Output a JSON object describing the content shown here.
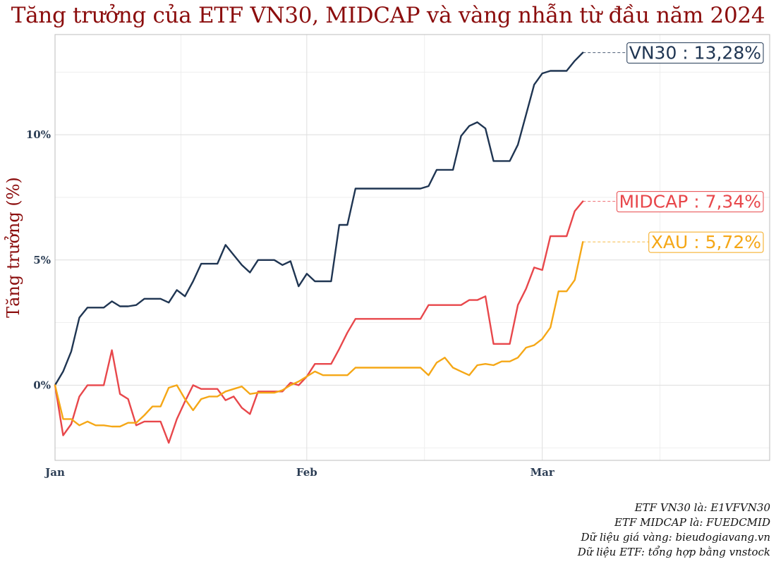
{
  "page_title": "Tăng trưởng của ETF VN30, MIDCAP và vàng nhẫn từ đầu năm 2024",
  "caption_lines": [
    "ETF VN30 là: E1VFVN30",
    "ETF MIDCAP là: FUEDCMID",
    "Dữ liệu giá vàng: bieudogiavang.vn",
    "Dữ liệu ETF: tổng hợp bằng vnstock"
  ],
  "chart_data": {
    "type": "line",
    "title": "Tăng trưởng của ETF VN30, MIDCAP và vàng nhẫn từ đầu năm 2024",
    "xlabel": "",
    "ylabel": "Tăng trưởng (%)",
    "x_unit": "day_of_year_2024",
    "xlim": [
      0,
      88
    ],
    "ylim": [
      -3,
      14
    ],
    "x_ticks": [
      {
        "value": 0,
        "label": "Jan"
      },
      {
        "value": 31,
        "label": "Feb"
      },
      {
        "value": 60,
        "label": "Mar"
      }
    ],
    "y_ticks": [
      {
        "value": 0,
        "label": "0%"
      },
      {
        "value": 5,
        "label": "5%"
      },
      {
        "value": 10,
        "label": "10%"
      }
    ],
    "grid": true,
    "series": [
      {
        "name": "VN30",
        "end_label": "VN30 : 13,28%",
        "color": "#1f3552",
        "x": [
          0,
          1,
          2,
          3,
          4,
          5,
          6,
          7,
          8,
          9,
          10,
          11,
          12,
          13,
          14,
          15,
          16,
          17,
          18,
          19,
          20,
          21,
          22,
          23,
          24,
          25,
          26,
          27,
          28,
          29,
          30,
          31,
          32,
          33,
          34,
          35,
          36,
          37,
          38,
          39,
          40,
          41,
          42,
          43,
          44,
          45,
          46,
          47,
          48,
          49,
          50,
          51,
          52,
          53,
          54,
          55,
          56,
          57,
          58,
          59,
          60,
          61,
          62,
          63,
          64
        ],
        "values": [
          0,
          0.55,
          1.35,
          2.7,
          3.1,
          3.1,
          3.1,
          3.35,
          3.15,
          3.15,
          3.2,
          3.45,
          3.45,
          3.45,
          3.3,
          3.8,
          3.55,
          4.15,
          4.85,
          4.85,
          4.85,
          5.6,
          5.2,
          4.8,
          4.5,
          5.0,
          5.0,
          5.0,
          4.8,
          4.95,
          3.95,
          4.45,
          4.15,
          4.15,
          4.15,
          6.4,
          6.4,
          7.85,
          7.85,
          7.85,
          7.85,
          7.85,
          7.85,
          7.85,
          7.85,
          7.85,
          7.95,
          8.6,
          8.6,
          8.6,
          9.95,
          10.35,
          10.5,
          10.25,
          8.95,
          8.95,
          8.95,
          9.6,
          10.8,
          12.0,
          12.45,
          12.55,
          12.55,
          12.55,
          12.95
        ],
        "end_value": 13.28
      },
      {
        "name": "MIDCAP",
        "end_label": "MIDCAP : 7,34%",
        "color": "#e8474b",
        "x": [
          0,
          1,
          2,
          3,
          4,
          5,
          6,
          7,
          8,
          9,
          10,
          11,
          12,
          13,
          14,
          15,
          16,
          17,
          18,
          19,
          20,
          21,
          22,
          23,
          24,
          25,
          26,
          27,
          28,
          29,
          30,
          31,
          32,
          33,
          34,
          35,
          36,
          37,
          38,
          39,
          40,
          41,
          42,
          43,
          44,
          45,
          46,
          47,
          48,
          49,
          50,
          51,
          52,
          53,
          54,
          55,
          56,
          57,
          58,
          59,
          60,
          61,
          62,
          63,
          64
        ],
        "values": [
          0,
          -2.0,
          -1.55,
          -0.45,
          0,
          0,
          0,
          1.4,
          -0.35,
          -0.55,
          -1.6,
          -1.45,
          -1.45,
          -1.45,
          -2.3,
          -1.35,
          -0.65,
          0,
          -0.15,
          -0.15,
          -0.15,
          -0.6,
          -0.45,
          -0.9,
          -1.15,
          -0.25,
          -0.25,
          -0.25,
          -0.25,
          0.1,
          0.0,
          0.35,
          0.85,
          0.85,
          0.85,
          1.45,
          2.1,
          2.65,
          2.65,
          2.65,
          2.65,
          2.65,
          2.65,
          2.65,
          2.65,
          2.65,
          3.2,
          3.2,
          3.2,
          3.2,
          3.2,
          3.4,
          3.4,
          3.55,
          1.65,
          1.65,
          1.65,
          3.2,
          3.85,
          4.7,
          4.6,
          5.95,
          5.95,
          5.95,
          6.95
        ],
        "end_value": 7.34
      },
      {
        "name": "XAU",
        "end_label": "XAU : 5,72%",
        "color": "#f5a716",
        "x": [
          0,
          1,
          2,
          3,
          4,
          5,
          6,
          7,
          8,
          9,
          10,
          11,
          12,
          13,
          14,
          15,
          16,
          17,
          18,
          19,
          20,
          21,
          22,
          23,
          24,
          25,
          26,
          27,
          28,
          29,
          30,
          31,
          32,
          33,
          34,
          35,
          36,
          37,
          38,
          39,
          40,
          41,
          42,
          43,
          44,
          45,
          46,
          47,
          48,
          49,
          50,
          51,
          52,
          53,
          54,
          55,
          56,
          57,
          58,
          59,
          60,
          61,
          62,
          63,
          64
        ],
        "values": [
          0,
          -1.35,
          -1.35,
          -1.6,
          -1.45,
          -1.6,
          -1.6,
          -1.65,
          -1.65,
          -1.5,
          -1.5,
          -1.2,
          -0.85,
          -0.85,
          -0.1,
          0,
          -0.55,
          -1.0,
          -0.55,
          -0.45,
          -0.45,
          -0.25,
          -0.15,
          -0.05,
          -0.35,
          -0.3,
          -0.3,
          -0.3,
          -0.2,
          0,
          0.15,
          0.35,
          0.55,
          0.4,
          0.4,
          0.4,
          0.4,
          0.7,
          0.7,
          0.7,
          0.7,
          0.7,
          0.7,
          0.7,
          0.7,
          0.7,
          0.4,
          0.9,
          1.1,
          0.7,
          0.55,
          0.4,
          0.8,
          0.85,
          0.8,
          0.95,
          0.95,
          1.1,
          1.5,
          1.6,
          1.85,
          2.3,
          3.75,
          3.75,
          4.2
        ],
        "end_value": 5.72
      }
    ]
  }
}
